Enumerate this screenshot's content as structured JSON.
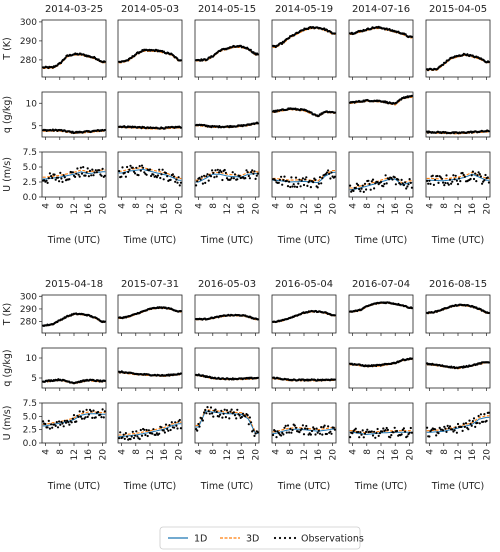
{
  "chart_data": {
    "type": "line",
    "x_ticks": [
      "4",
      "8",
      "12",
      "16",
      "20"
    ],
    "x_range": [
      3,
      21
    ],
    "xlabel": "Time (UTC)",
    "rows": [
      {
        "key": "T",
        "ylabel": "T (K)",
        "ylim": [
          271,
          301
        ],
        "yticks": [
          "280",
          "290",
          "300"
        ]
      },
      {
        "key": "q",
        "ylabel": "q (g/kg)",
        "ylim": [
          2.5,
          12.5
        ],
        "yticks": [
          "5",
          "10"
        ]
      },
      {
        "key": "U",
        "ylabel": "U (m/s)",
        "ylim": [
          0,
          7.5
        ],
        "yticks": [
          "0.0",
          "2.5",
          "5.0",
          "7.5"
        ]
      }
    ],
    "legend": {
      "entries": [
        {
          "label": "1D",
          "color": "#1f77b4",
          "style": "solid"
        },
        {
          "label": "3D",
          "color": "#ff7f0e",
          "style": "dashed"
        },
        {
          "label": "Observations",
          "color": "#000000",
          "style": "dots"
        }
      ]
    },
    "groups": [
      {
        "dates": [
          "2014-03-25",
          "2014-05-03",
          "2014-05-15",
          "2014-05-19",
          "2014-07-16",
          "2015-04-05"
        ]
      },
      {
        "dates": [
          "2015-04-18",
          "2015-07-31",
          "2016-05-03",
          "2016-05-04",
          "2016-07-04",
          "2016-08-15"
        ]
      }
    ],
    "series": {
      "2014-03-25": {
        "T": [
          [
            4,
            276
          ],
          [
            6,
            276
          ],
          [
            8,
            278
          ],
          [
            10,
            282
          ],
          [
            12,
            283
          ],
          [
            14,
            283
          ],
          [
            16,
            282
          ],
          [
            18,
            281
          ],
          [
            20,
            279
          ]
        ],
        "q": [
          [
            4,
            4.0
          ],
          [
            8,
            4.0
          ],
          [
            12,
            3.5
          ],
          [
            16,
            3.7
          ],
          [
            20,
            4.0
          ]
        ],
        "U": [
          [
            4,
            3.0
          ],
          [
            8,
            3.3
          ],
          [
            12,
            3.8
          ],
          [
            14,
            4.2
          ],
          [
            16,
            3.9
          ],
          [
            20,
            4.2
          ]
        ]
      },
      "2014-05-03": {
        "T": [
          [
            4,
            279
          ],
          [
            6,
            280
          ],
          [
            8,
            283
          ],
          [
            10,
            285
          ],
          [
            12,
            285
          ],
          [
            14,
            285
          ],
          [
            16,
            284
          ],
          [
            18,
            283
          ],
          [
            20,
            280
          ]
        ],
        "q": [
          [
            4,
            4.8
          ],
          [
            8,
            4.7
          ],
          [
            12,
            4.5
          ],
          [
            16,
            4.5
          ],
          [
            20,
            4.7
          ]
        ],
        "U": [
          [
            4,
            4.0
          ],
          [
            6,
            4.3
          ],
          [
            10,
            4.6
          ],
          [
            14,
            4.0
          ],
          [
            17,
            3.6
          ],
          [
            20,
            2.8
          ]
        ]
      },
      "2014-05-15": {
        "T": [
          [
            4,
            280
          ],
          [
            6,
            280
          ],
          [
            8,
            282
          ],
          [
            10,
            285
          ],
          [
            12,
            286
          ],
          [
            14,
            287
          ],
          [
            16,
            287
          ],
          [
            18,
            286
          ],
          [
            20,
            283
          ]
        ],
        "q": [
          [
            4,
            5.2
          ],
          [
            8,
            4.8
          ],
          [
            12,
            4.8
          ],
          [
            16,
            5.0
          ],
          [
            18,
            5.2
          ],
          [
            20,
            5.6
          ]
        ],
        "U": [
          [
            4,
            2.5
          ],
          [
            6,
            3.1
          ],
          [
            8,
            3.8
          ],
          [
            10,
            3.8
          ],
          [
            12,
            3.5
          ],
          [
            14,
            3.4
          ],
          [
            16,
            3.3
          ],
          [
            18,
            3.8
          ],
          [
            20,
            3.9
          ]
        ]
      },
      "2014-05-19": {
        "T": [
          [
            4,
            287
          ],
          [
            6,
            289
          ],
          [
            8,
            292
          ],
          [
            10,
            294
          ],
          [
            12,
            296
          ],
          [
            14,
            297
          ],
          [
            16,
            297
          ],
          [
            18,
            296
          ],
          [
            20,
            294
          ]
        ],
        "q": [
          [
            4,
            8.2
          ],
          [
            8,
            8.8
          ],
          [
            12,
            8.5
          ],
          [
            16,
            7.2
          ],
          [
            18,
            8.2
          ],
          [
            20,
            8.0
          ]
        ],
        "U": [
          [
            4,
            2.8
          ],
          [
            8,
            2.5
          ],
          [
            12,
            2.6
          ],
          [
            16,
            2.4
          ],
          [
            18,
            3.5
          ],
          [
            20,
            4.1
          ]
        ]
      },
      "2014-07-16": {
        "T": [
          [
            4,
            294
          ],
          [
            6,
            295
          ],
          [
            8,
            296
          ],
          [
            10,
            297
          ],
          [
            12,
            297
          ],
          [
            14,
            296
          ],
          [
            16,
            295
          ],
          [
            18,
            294
          ],
          [
            20,
            292
          ]
        ],
        "q": [
          [
            4,
            10.2
          ],
          [
            8,
            10.6
          ],
          [
            12,
            10.5
          ],
          [
            16,
            9.8
          ],
          [
            18,
            11.2
          ],
          [
            20,
            11.5
          ]
        ],
        "U": [
          [
            4,
            1.2
          ],
          [
            8,
            1.8
          ],
          [
            12,
            2.5
          ],
          [
            14,
            2.9
          ],
          [
            16,
            3.0
          ],
          [
            18,
            2.0
          ],
          [
            20,
            2.4
          ]
        ]
      },
      "2015-04-05": {
        "T": [
          [
            4,
            275
          ],
          [
            6,
            275
          ],
          [
            8,
            278
          ],
          [
            10,
            281
          ],
          [
            12,
            282
          ],
          [
            14,
            283
          ],
          [
            16,
            282
          ],
          [
            18,
            281
          ],
          [
            20,
            279
          ]
        ],
        "q": [
          [
            4,
            3.6
          ],
          [
            8,
            3.5
          ],
          [
            12,
            3.4
          ],
          [
            16,
            3.6
          ],
          [
            20,
            3.8
          ]
        ],
        "U": [
          [
            4,
            2.8
          ],
          [
            8,
            2.7
          ],
          [
            12,
            3.0
          ],
          [
            14,
            3.3
          ],
          [
            16,
            3.8
          ],
          [
            18,
            3.3
          ],
          [
            20,
            2.8
          ]
        ]
      },
      "2015-04-18": {
        "T": [
          [
            4,
            277
          ],
          [
            6,
            278
          ],
          [
            8,
            281
          ],
          [
            10,
            284
          ],
          [
            12,
            286
          ],
          [
            14,
            286
          ],
          [
            16,
            285
          ],
          [
            18,
            283
          ],
          [
            20,
            280
          ]
        ],
        "q": [
          [
            4,
            4.2
          ],
          [
            8,
            4.6
          ],
          [
            12,
            3.8
          ],
          [
            16,
            4.5
          ],
          [
            20,
            4.2
          ]
        ],
        "U": [
          [
            4,
            3.2
          ],
          [
            6,
            3.5
          ],
          [
            8,
            3.7
          ],
          [
            10,
            4.0
          ],
          [
            12,
            4.4
          ],
          [
            14,
            5.2
          ],
          [
            16,
            5.5
          ],
          [
            18,
            5.5
          ],
          [
            20,
            5.4
          ]
        ]
      },
      "2015-07-31": {
        "T": [
          [
            4,
            283
          ],
          [
            6,
            284
          ],
          [
            8,
            286
          ],
          [
            10,
            288
          ],
          [
            12,
            290
          ],
          [
            14,
            291
          ],
          [
            16,
            291
          ],
          [
            18,
            290
          ],
          [
            20,
            288
          ]
        ],
        "q": [
          [
            4,
            6.5
          ],
          [
            8,
            6.0
          ],
          [
            12,
            5.8
          ],
          [
            16,
            5.6
          ],
          [
            20,
            6.0
          ]
        ],
        "U": [
          [
            4,
            1.2
          ],
          [
            8,
            1.5
          ],
          [
            12,
            2.0
          ],
          [
            14,
            2.3
          ],
          [
            16,
            2.6
          ],
          [
            18,
            3.2
          ],
          [
            20,
            3.6
          ]
        ]
      },
      "2016-05-03": {
        "T": [
          [
            4,
            282
          ],
          [
            6,
            282
          ],
          [
            8,
            283
          ],
          [
            10,
            284
          ],
          [
            12,
            285
          ],
          [
            14,
            285
          ],
          [
            16,
            285
          ],
          [
            18,
            284
          ],
          [
            20,
            282
          ]
        ],
        "q": [
          [
            4,
            5.8
          ],
          [
            8,
            5.0
          ],
          [
            12,
            4.8
          ],
          [
            16,
            4.8
          ],
          [
            20,
            5.0
          ]
        ],
        "U": [
          [
            4,
            3.0
          ],
          [
            6,
            6.0
          ],
          [
            8,
            5.8
          ],
          [
            12,
            5.5
          ],
          [
            16,
            5.4
          ],
          [
            18,
            4.5
          ],
          [
            20,
            1.8
          ]
        ]
      },
      "2016-05-04": {
        "T": [
          [
            4,
            280
          ],
          [
            6,
            281
          ],
          [
            8,
            283
          ],
          [
            10,
            285
          ],
          [
            12,
            287
          ],
          [
            14,
            288
          ],
          [
            16,
            288
          ],
          [
            18,
            287
          ],
          [
            20,
            285
          ]
        ],
        "q": [
          [
            4,
            5.0
          ],
          [
            8,
            4.5
          ],
          [
            12,
            4.5
          ],
          [
            16,
            4.5
          ],
          [
            20,
            4.6
          ]
        ],
        "U": [
          [
            4,
            1.8
          ],
          [
            6,
            2.2
          ],
          [
            8,
            2.5
          ],
          [
            10,
            2.6
          ],
          [
            12,
            2.5
          ],
          [
            16,
            2.2
          ],
          [
            20,
            2.6
          ]
        ]
      },
      "2016-07-04": {
        "T": [
          [
            4,
            288
          ],
          [
            6,
            289
          ],
          [
            8,
            292
          ],
          [
            10,
            294
          ],
          [
            12,
            295
          ],
          [
            14,
            295
          ],
          [
            16,
            294
          ],
          [
            18,
            293
          ],
          [
            20,
            291
          ]
        ],
        "q": [
          [
            4,
            8.5
          ],
          [
            8,
            8.0
          ],
          [
            12,
            8.2
          ],
          [
            16,
            8.8
          ],
          [
            18,
            9.5
          ],
          [
            20,
            9.8
          ]
        ],
        "U": [
          [
            4,
            2.0
          ],
          [
            8,
            1.6
          ],
          [
            12,
            1.9
          ],
          [
            16,
            2.0
          ],
          [
            20,
            2.0
          ]
        ]
      },
      "2016-08-15": {
        "T": [
          [
            4,
            287
          ],
          [
            6,
            288
          ],
          [
            8,
            290
          ],
          [
            10,
            292
          ],
          [
            12,
            293
          ],
          [
            14,
            293
          ],
          [
            16,
            292
          ],
          [
            18,
            290
          ],
          [
            20,
            287
          ]
        ],
        "q": [
          [
            4,
            8.5
          ],
          [
            8,
            8.0
          ],
          [
            12,
            7.5
          ],
          [
            16,
            8.2
          ],
          [
            20,
            9.0
          ]
        ],
        "U": [
          [
            4,
            2.0
          ],
          [
            8,
            2.2
          ],
          [
            12,
            2.8
          ],
          [
            16,
            3.5
          ],
          [
            18,
            4.5
          ],
          [
            20,
            4.8
          ]
        ]
      }
    }
  }
}
